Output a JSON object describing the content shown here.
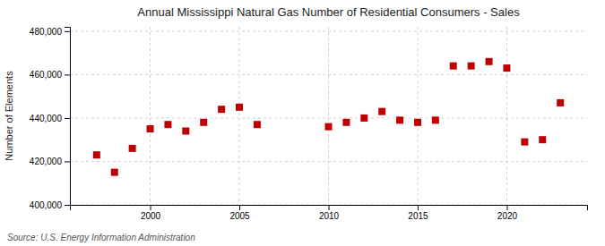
{
  "chart_data": {
    "type": "scatter",
    "title": "Annual Mississippi Natural Gas Number of Residential Consumers - Sales",
    "y_label": "Number of Elements",
    "annotations": [
      "Source: U.S. Energy Information Administration"
    ],
    "x": [
      1997,
      1998,
      1999,
      2000,
      2001,
      2002,
      2003,
      2004,
      2005,
      2006,
      2010,
      2011,
      2012,
      2013,
      2014,
      2015,
      2016,
      2017,
      2018,
      2019,
      2020,
      2021,
      2022,
      2023
    ],
    "values": [
      423000,
      415000,
      426000,
      435000,
      437000,
      434000,
      438000,
      444000,
      445000,
      437000,
      436000,
      438000,
      440000,
      443000,
      439000,
      438000,
      439000,
      464000,
      464000,
      466000,
      463000,
      429000,
      430000,
      447000
    ],
    "color": "#c00000",
    "marker": "square",
    "xlim": [
      1995.5,
      2024.5
    ],
    "xticks": [
      2000,
      2005,
      2010,
      2015,
      2020
    ],
    "ylim": [
      400000,
      482000
    ],
    "yticks": [
      {
        "value": 400000,
        "label": "400,000"
      },
      {
        "value": 420000,
        "label": "420,000"
      },
      {
        "value": 440000,
        "label": "440,000"
      },
      {
        "value": 460000,
        "label": "460,000"
      },
      {
        "value": 480000,
        "label": "480,000"
      }
    ],
    "grid": true
  }
}
